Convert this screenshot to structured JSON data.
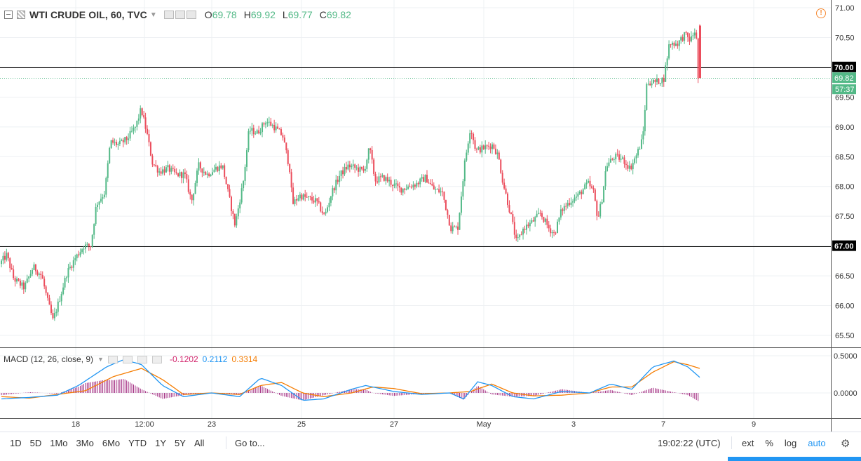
{
  "header": {
    "title": "WTI CRUDE OIL, 60, TVC",
    "ohlc": [
      {
        "key": "O",
        "value": "69.78"
      },
      {
        "key": "H",
        "value": "69.92"
      },
      {
        "key": "L",
        "value": "69.77"
      },
      {
        "key": "C",
        "value": "69.82"
      }
    ]
  },
  "macd": {
    "label": "MACD (12, 26, close, 9)",
    "hist_value": "-0.1202",
    "macd_value": "0.2112",
    "signal_value": "0.3314",
    "axis_ticks": [
      "0.5000",
      "0.0000"
    ]
  },
  "price_axis": {
    "ticks": [
      "71.00",
      "70.50",
      "69.50",
      "69.00",
      "68.50",
      "68.00",
      "67.50",
      "66.50",
      "66.00",
      "65.50"
    ],
    "levels": [
      {
        "label": "70.00",
        "value": 70.0
      },
      {
        "label": "67.00",
        "value": 67.0
      }
    ],
    "last_price": "69.82",
    "countdown": "57:37"
  },
  "time_axis": {
    "labels": [
      "18",
      "12:00",
      "23",
      "25",
      "27",
      "May",
      "3",
      "7",
      "9"
    ]
  },
  "toolbar": {
    "ranges": [
      "1D",
      "5D",
      "1Mo",
      "3Mo",
      "6Mo",
      "YTD",
      "1Y",
      "5Y",
      "All"
    ],
    "goto": "Go to...",
    "clock": "19:02:22 (UTC)",
    "ext": "ext",
    "percent": "%",
    "log": "log",
    "auto": "auto"
  },
  "colors": {
    "up": "#53b987",
    "down": "#eb4d5c",
    "macd_line": "#2196f3",
    "signal_line": "#f57c00",
    "histogram": "#a1287f",
    "last_price_tag": "#53b987"
  },
  "chart_data": {
    "type": "candlestick",
    "title": "WTI CRUDE OIL, 60, TVC",
    "ylim": [
      65.3,
      71.05
    ],
    "horizontal_levels": [
      70.0,
      67.0
    ],
    "last_price": 69.82,
    "x_labels": [
      "18",
      "12:00",
      "23",
      "25",
      "27",
      "May",
      "3",
      "7",
      "9"
    ],
    "price_path": [
      [
        0,
        66.7
      ],
      [
        10,
        66.85
      ],
      [
        20,
        66.45
      ],
      [
        35,
        66.3
      ],
      [
        48,
        66.65
      ],
      [
        60,
        66.5
      ],
      [
        68,
        66.1
      ],
      [
        76,
        65.75
      ],
      [
        84,
        66.05
      ],
      [
        96,
        66.55
      ],
      [
        108,
        66.8
      ],
      [
        120,
        67.0
      ],
      [
        130,
        67.0
      ],
      [
        138,
        67.7
      ],
      [
        150,
        67.9
      ],
      [
        158,
        68.75
      ],
      [
        170,
        68.7
      ],
      [
        182,
        68.8
      ],
      [
        194,
        69.0
      ],
      [
        202,
        69.3
      ],
      [
        210,
        68.9
      ],
      [
        218,
        68.4
      ],
      [
        228,
        68.25
      ],
      [
        240,
        68.3
      ],
      [
        252,
        68.2
      ],
      [
        264,
        68.2
      ],
      [
        274,
        67.75
      ],
      [
        284,
        68.35
      ],
      [
        296,
        68.2
      ],
      [
        308,
        68.3
      ],
      [
        318,
        68.35
      ],
      [
        326,
        67.9
      ],
      [
        336,
        67.35
      ],
      [
        348,
        68.1
      ],
      [
        356,
        68.95
      ],
      [
        368,
        68.9
      ],
      [
        380,
        69.1
      ],
      [
        392,
        69.0
      ],
      [
        404,
        68.85
      ],
      [
        414,
        68.3
      ],
      [
        418,
        67.7
      ],
      [
        428,
        67.85
      ],
      [
        440,
        67.8
      ],
      [
        452,
        67.75
      ],
      [
        464,
        67.5
      ],
      [
        474,
        67.9
      ],
      [
        486,
        68.2
      ],
      [
        498,
        68.35
      ],
      [
        510,
        68.3
      ],
      [
        520,
        68.25
      ],
      [
        528,
        68.65
      ],
      [
        536,
        68.1
      ],
      [
        548,
        68.15
      ],
      [
        560,
        68.05
      ],
      [
        572,
        67.95
      ],
      [
        584,
        68.0
      ],
      [
        596,
        68.05
      ],
      [
        608,
        68.15
      ],
      [
        620,
        67.95
      ],
      [
        632,
        67.9
      ],
      [
        644,
        67.3
      ],
      [
        654,
        67.3
      ],
      [
        664,
        68.4
      ],
      [
        672,
        69.0
      ],
      [
        680,
        68.6
      ],
      [
        692,
        68.65
      ],
      [
        704,
        68.7
      ],
      [
        712,
        68.5
      ],
      [
        718,
        68.1
      ],
      [
        730,
        67.5
      ],
      [
        738,
        67.05
      ],
      [
        748,
        67.3
      ],
      [
        760,
        67.4
      ],
      [
        772,
        67.55
      ],
      [
        784,
        67.3
      ],
      [
        792,
        67.2
      ],
      [
        802,
        67.6
      ],
      [
        814,
        67.75
      ],
      [
        826,
        67.85
      ],
      [
        840,
        68.05
      ],
      [
        848,
        67.9
      ],
      [
        854,
        67.45
      ],
      [
        860,
        67.8
      ],
      [
        866,
        68.35
      ],
      [
        878,
        68.5
      ],
      [
        890,
        68.45
      ],
      [
        900,
        68.3
      ],
      [
        910,
        68.55
      ],
      [
        918,
        68.8
      ],
      [
        924,
        69.75
      ],
      [
        936,
        69.75
      ],
      [
        948,
        69.8
      ],
      [
        956,
        70.4
      ],
      [
        968,
        70.4
      ],
      [
        978,
        70.55
      ],
      [
        986,
        70.45
      ],
      [
        994,
        70.65
      ],
      [
        997,
        69.82
      ]
    ],
    "macd_series": {
      "macd_path": [
        [
          0,
          -0.08
        ],
        [
          40,
          -0.06
        ],
        [
          80,
          -0.03
        ],
        [
          110,
          0.1
        ],
        [
          150,
          0.35
        ],
        [
          175,
          0.45
        ],
        [
          200,
          0.38
        ],
        [
          230,
          0.1
        ],
        [
          260,
          -0.05
        ],
        [
          300,
          0.0
        ],
        [
          340,
          -0.05
        ],
        [
          370,
          0.2
        ],
        [
          400,
          0.1
        ],
        [
          430,
          -0.1
        ],
        [
          460,
          -0.08
        ],
        [
          500,
          0.05
        ],
        [
          520,
          0.1
        ],
        [
          560,
          0.02
        ],
        [
          600,
          -0.02
        ],
        [
          640,
          0.0
        ],
        [
          660,
          -0.08
        ],
        [
          680,
          0.15
        ],
        [
          700,
          0.1
        ],
        [
          730,
          -0.05
        ],
        [
          760,
          -0.08
        ],
        [
          800,
          0.02
        ],
        [
          840,
          0.0
        ],
        [
          870,
          0.12
        ],
        [
          900,
          0.05
        ],
        [
          930,
          0.35
        ],
        [
          960,
          0.43
        ],
        [
          980,
          0.35
        ],
        [
          997,
          0.21
        ]
      ],
      "signal_path": [
        [
          0,
          -0.05
        ],
        [
          40,
          -0.07
        ],
        [
          80,
          -0.02
        ],
        [
          120,
          0.03
        ],
        [
          160,
          0.22
        ],
        [
          200,
          0.33
        ],
        [
          230,
          0.18
        ],
        [
          260,
          -0.02
        ],
        [
          300,
          0.0
        ],
        [
          340,
          -0.02
        ],
        [
          370,
          0.1
        ],
        [
          400,
          0.14
        ],
        [
          430,
          0.0
        ],
        [
          460,
          -0.05
        ],
        [
          500,
          0.0
        ],
        [
          530,
          0.08
        ],
        [
          560,
          0.06
        ],
        [
          600,
          -0.01
        ],
        [
          640,
          0.0
        ],
        [
          670,
          0.02
        ],
        [
          700,
          0.12
        ],
        [
          730,
          0.0
        ],
        [
          760,
          -0.04
        ],
        [
          800,
          -0.03
        ],
        [
          840,
          0.0
        ],
        [
          870,
          0.08
        ],
        [
          900,
          0.08
        ],
        [
          930,
          0.28
        ],
        [
          960,
          0.42
        ],
        [
          980,
          0.38
        ],
        [
          997,
          0.33
        ]
      ]
    }
  }
}
